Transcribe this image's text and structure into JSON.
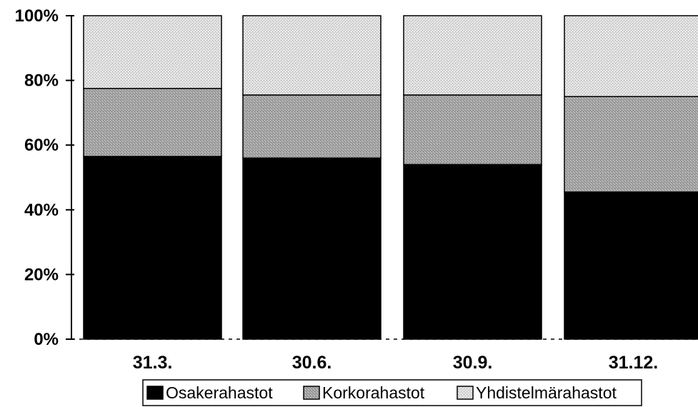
{
  "chart_data": {
    "type": "bar",
    "stacked": true,
    "percent": true,
    "categories": [
      "31.3.",
      "30.6.",
      "30.9.",
      "31.12."
    ],
    "series": [
      {
        "name": "Osakerahastot",
        "values": [
          56.5,
          56.0,
          54.0,
          45.5
        ],
        "color": "#000000"
      },
      {
        "name": "Korkorahastot",
        "values": [
          21.0,
          19.5,
          21.5,
          29.5
        ],
        "color": "#9a9a9a"
      },
      {
        "name": "Yhdistelmärahastot",
        "values": [
          22.5,
          24.5,
          24.5,
          25.0
        ],
        "color": "#d2d2d2"
      }
    ],
    "yticks": [
      "0%",
      "20%",
      "40%",
      "60%",
      "80%",
      "100%"
    ],
    "ylim": [
      0,
      100
    ],
    "grid": false,
    "legend_position": "bottom"
  }
}
